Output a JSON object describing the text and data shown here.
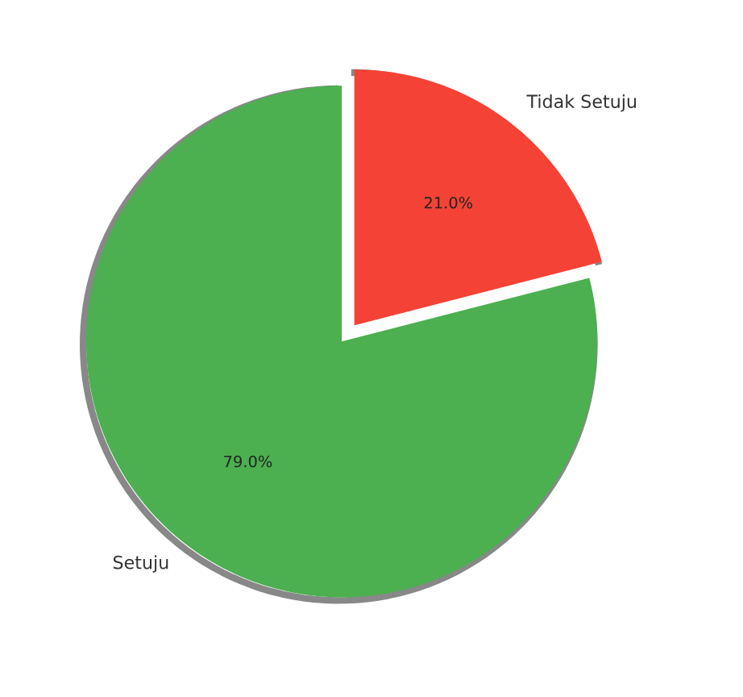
{
  "chart_data": {
    "type": "pie",
    "categories": [
      "Setuju",
      "Tidak Setuju"
    ],
    "values": [
      79.0,
      21.0
    ],
    "colors": [
      "#4caf50",
      "#f44336"
    ],
    "value_labels": [
      "79.0%",
      "21.0%"
    ]
  }
}
